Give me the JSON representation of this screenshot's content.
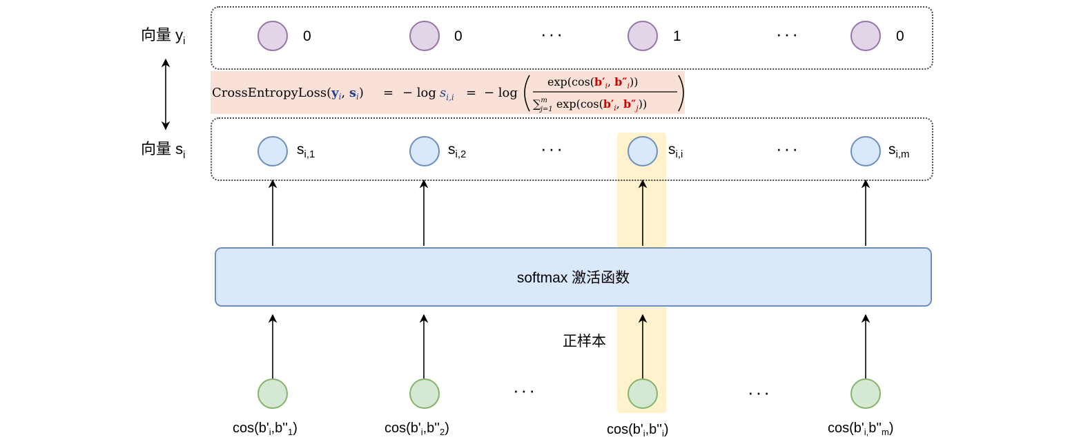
{
  "row_y": {
    "label": "向量 y",
    "label_sub": "i",
    "values": [
      "0",
      "0",
      "1",
      "0"
    ],
    "ellipsis": "···"
  },
  "row_s": {
    "label": "向量 s",
    "label_sub": "i",
    "items": [
      {
        "base": "s",
        "sub": "i,1"
      },
      {
        "base": "s",
        "sub": "i,2"
      },
      {
        "base": "s",
        "sub": "i,i"
      },
      {
        "base": "s",
        "sub": "i,m"
      }
    ],
    "ellipsis": "···"
  },
  "formula": {
    "lhs_name": "CrossEntropyLoss",
    "arg_y": "y",
    "arg_s": "s",
    "idx_i": "i",
    "eq": "=",
    "neg_log": "− log",
    "s_ii_base": "s",
    "s_ii_sub": "i,i",
    "num_prefix": "exp(cos(",
    "num_suffix": "))",
    "den_sum": "∑",
    "den_sup": "m",
    "den_sub": "j=1",
    "den_body": " exp(cos(",
    "b_prime": "b′",
    "b_dprime": "b″",
    "idx_j": "j",
    "comma": ", ",
    "colors": {
      "red": "#cc0000",
      "blue": "#1f3f8f"
    }
  },
  "softmax_label": "softmax 激活函数",
  "positive_label": "正样本",
  "bottom": {
    "ellipsis": "···",
    "items": [
      {
        "pre": "cos(b'",
        "s1": "i",
        "mid": ",b''",
        "s2": "1",
        "post": ")"
      },
      {
        "pre": "cos(b'",
        "s1": "i",
        "mid": ",b''",
        "s2": "2",
        "post": ")"
      },
      {
        "pre": "cos(b'",
        "s1": "i",
        "mid": ",b''",
        "s2": "i",
        "post": ")"
      },
      {
        "pre": "cos(b'",
        "s1": "i,",
        "mid": "b''",
        "s2": "m",
        "post": ")"
      }
    ]
  },
  "colors": {
    "purple_fill": "#e1d5e7",
    "purple_stroke": "#9673a6",
    "blue_fill": "#dae8fc",
    "blue_stroke": "#6c8ebf",
    "green_fill": "#d5e8d4",
    "green_stroke": "#82b366",
    "highlight": "#fff2cc",
    "formula_bg": "#fae1d8"
  }
}
